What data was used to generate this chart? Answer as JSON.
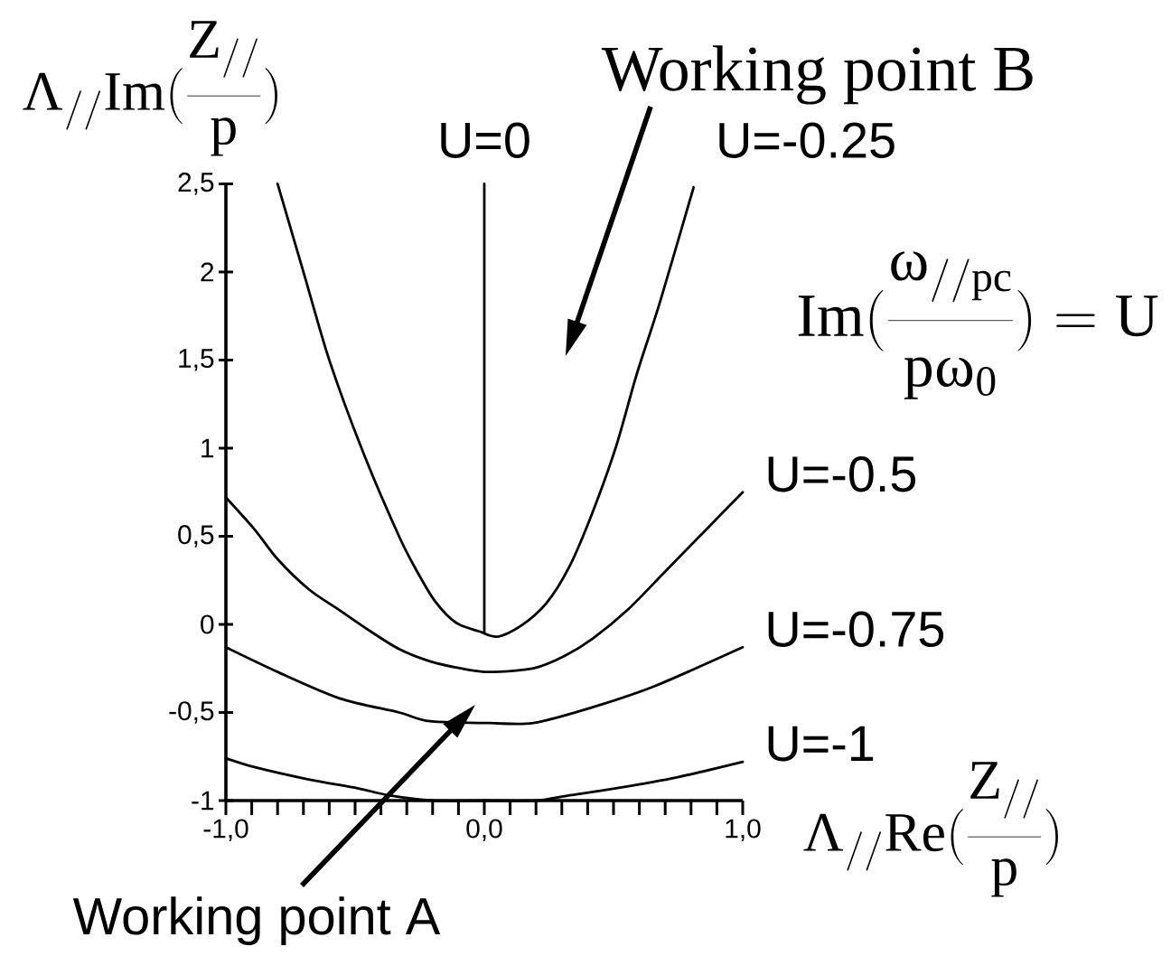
{
  "chart_data": {
    "type": "line",
    "xlabel": "\\Lambda_{//}Re(\\frac{Z_{//}}{p})",
    "ylabel": "\\Lambda_{//}Im(\\frac{Z_{//}}{p})",
    "xlim": [
      -1,
      1
    ],
    "ylim": [
      -1,
      2.5
    ],
    "xticks": [
      {
        "value": -1,
        "label": "-1,0"
      },
      {
        "value": -0.9,
        "label": null
      },
      {
        "value": -0.8,
        "label": null
      },
      {
        "value": -0.7,
        "label": null
      },
      {
        "value": -0.6,
        "label": null
      },
      {
        "value": -0.5,
        "label": null
      },
      {
        "value": -0.4,
        "label": null
      },
      {
        "value": -0.3,
        "label": null
      },
      {
        "value": -0.2,
        "label": null
      },
      {
        "value": -0.1,
        "label": null
      },
      {
        "value": 0,
        "label": "0,0"
      },
      {
        "value": 0.1,
        "label": null
      },
      {
        "value": 0.2,
        "label": null
      },
      {
        "value": 0.3,
        "label": null
      },
      {
        "value": 0.4,
        "label": null
      },
      {
        "value": 0.5,
        "label": null
      },
      {
        "value": 0.6,
        "label": null
      },
      {
        "value": 0.7,
        "label": null
      },
      {
        "value": 0.8,
        "label": null
      },
      {
        "value": 0.9,
        "label": null
      },
      {
        "value": 1,
        "label": "1,0"
      }
    ],
    "yticks": [
      -1,
      {
        "value": -0.5,
        "label": "-0,5"
      },
      0,
      {
        "value": 0.5,
        "label": "0,5"
      },
      1,
      {
        "value": 1.5,
        "label": "1,5"
      },
      2,
      {
        "value": 2.5,
        "label": "2,5"
      }
    ],
    "series": [
      {
        "name": "U=0",
        "color": "#000000",
        "x": [
          0,
          0
        ],
        "values": [
          2.5,
          -0.05
        ]
      },
      {
        "name": "U=-0.25",
        "color": "#000000",
        "x": [
          -0.8,
          -0.7,
          -0.6,
          -0.47,
          -0.33,
          -0.26,
          -0.19,
          -0.11,
          -0.02,
          0.05,
          0.14,
          0.24,
          0.33,
          0.42,
          0.51,
          0.59,
          0.68,
          0.81
        ],
        "values": [
          2.5,
          2.0,
          1.5,
          0.98,
          0.5,
          0.3,
          0.13,
          0.01,
          -0.04,
          -0.07,
          -0.01,
          0.12,
          0.33,
          0.64,
          1.01,
          1.42,
          1.83,
          2.48
        ]
      },
      {
        "name": "U=-0.5",
        "color": "#000000",
        "x": [
          -1,
          -0.89,
          -0.8,
          -0.68,
          -0.56,
          -0.44,
          -0.33,
          -0.21,
          -0.09,
          0.02,
          0.19,
          0.31,
          0.42,
          0.56,
          0.7,
          0.86,
          1.0
        ],
        "values": [
          0.72,
          0.54,
          0.37,
          0.2,
          0.08,
          -0.04,
          -0.14,
          -0.21,
          -0.25,
          -0.27,
          -0.25,
          -0.18,
          -0.08,
          0.09,
          0.3,
          0.54,
          0.75
        ]
      },
      {
        "name": "U=-0.75",
        "color": "#000000",
        "x": [
          -1,
          -0.8,
          -0.56,
          -0.33,
          -0.21,
          0.02,
          0.19,
          0.42,
          0.66,
          1.0
        ],
        "values": [
          -0.13,
          -0.27,
          -0.42,
          -0.5,
          -0.55,
          -0.56,
          -0.56,
          -0.47,
          -0.35,
          -0.13
        ]
      },
      {
        "name": "U=-1",
        "color": "#000000",
        "x": [
          -1,
          -0.89,
          -0.68,
          -0.49,
          -0.37,
          -0.2,
          0,
          0.2,
          0.33,
          0.51,
          0.74,
          1.0
        ],
        "values": [
          -0.76,
          -0.81,
          -0.88,
          -0.93,
          -0.97,
          -1,
          -1,
          -1,
          -0.97,
          -0.93,
          -0.87,
          -0.78
        ]
      }
    ],
    "annotations": [
      "Working point A",
      "Working point B",
      "Im(\\frac{\\omega_{//pc}}{p\\omega_0}) = U"
    ]
  }
}
